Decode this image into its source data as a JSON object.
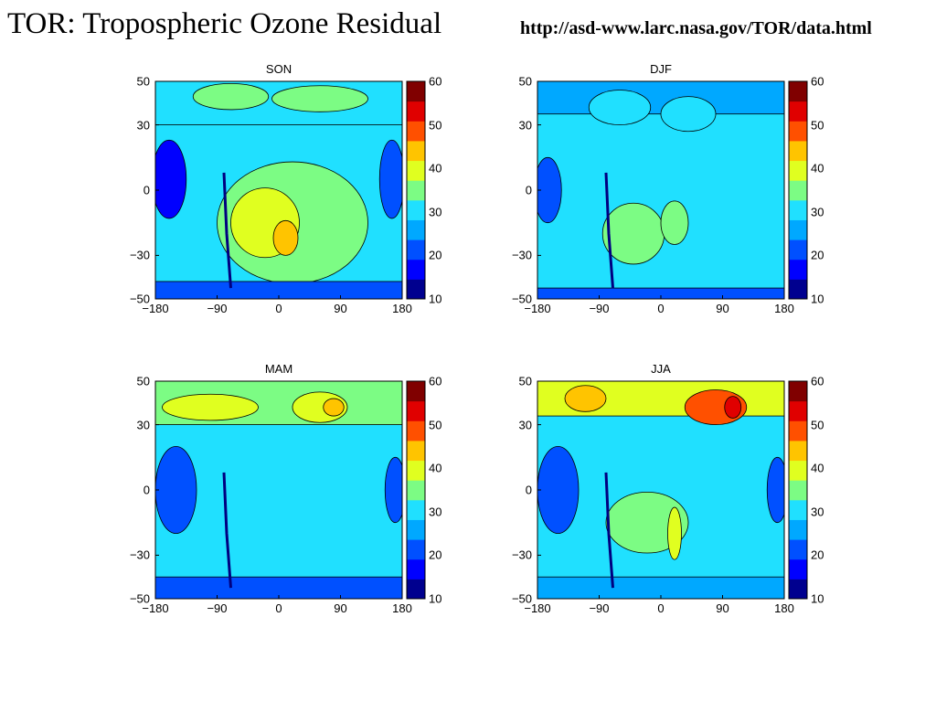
{
  "page": {
    "title": "TOR: Tropospheric Ozone Residual",
    "url_text": "http://asd-www.larc.nasa.gov/TOR/data.html"
  },
  "colormap": [
    "#00008f",
    "#0000ff",
    "#0050ff",
    "#00a8ff",
    "#20e0ff",
    "#7cfc84",
    "#e0ff20",
    "#ffc400",
    "#ff5000",
    "#e00000",
    "#800000"
  ],
  "chart_data": [
    {
      "type": "heatmap",
      "title": "SON",
      "x_ticks": [
        "−180",
        "−90",
        "0",
        "90",
        "180"
      ],
      "y_ticks": [
        "50",
        "30",
        "0",
        "−30",
        "−50"
      ],
      "x_tick_values": [
        -180,
        -90,
        0,
        90,
        180
      ],
      "y_tick_values": [
        50,
        30,
        0,
        -30,
        -50
      ],
      "xlim": [
        -180,
        180
      ],
      "ylim": [
        -50,
        50
      ],
      "colorbar": {
        "ticks": [
          "60",
          "50",
          "40",
          "30",
          "20",
          "10"
        ],
        "tick_values": [
          60,
          50,
          40,
          30,
          20,
          10
        ],
        "range": [
          10,
          60
        ]
      },
      "features": [
        {
          "shape": "band",
          "y": [
            30,
            50
          ],
          "value": 31
        },
        {
          "shape": "blob",
          "x": -70,
          "y": 43,
          "rx": 55,
          "ry": 6,
          "value": 35
        },
        {
          "shape": "blob",
          "x": 60,
          "y": 42,
          "rx": 70,
          "ry": 6,
          "value": 35
        },
        {
          "shape": "blob",
          "x": -160,
          "y": 5,
          "rx": 25,
          "ry": 18,
          "value": 16
        },
        {
          "shape": "blob",
          "x": 165,
          "y": 5,
          "rx": 18,
          "ry": 18,
          "value": 20
        },
        {
          "shape": "blob",
          "x": 20,
          "y": -15,
          "rx": 110,
          "ry": 28,
          "value": 36
        },
        {
          "shape": "blob",
          "x": -20,
          "y": -15,
          "rx": 50,
          "ry": 16,
          "value": 41
        },
        {
          "shape": "blob",
          "x": 10,
          "y": -22,
          "rx": 18,
          "ry": 8,
          "value": 46
        },
        {
          "shape": "band",
          "y": [
            -50,
            -42
          ],
          "value": 22
        }
      ]
    },
    {
      "type": "heatmap",
      "title": "DJF",
      "x_ticks": [
        "−180",
        "−90",
        "0",
        "90",
        "180"
      ],
      "y_ticks": [
        "50",
        "30",
        "0",
        "−30",
        "−50"
      ],
      "x_tick_values": [
        -180,
        -90,
        0,
        90,
        180
      ],
      "y_tick_values": [
        50,
        30,
        0,
        -30,
        -50
      ],
      "xlim": [
        -180,
        180
      ],
      "ylim": [
        -50,
        50
      ],
      "colorbar": {
        "ticks": [
          "60",
          "50",
          "40",
          "30",
          "20",
          "10"
        ],
        "tick_values": [
          60,
          50,
          40,
          30,
          20,
          10
        ],
        "range": [
          10,
          60
        ]
      },
      "features": [
        {
          "shape": "band",
          "y": [
            35,
            50
          ],
          "value": 24
        },
        {
          "shape": "blob",
          "x": -60,
          "y": 38,
          "rx": 45,
          "ry": 8,
          "value": 30
        },
        {
          "shape": "blob",
          "x": 40,
          "y": 35,
          "rx": 40,
          "ry": 8,
          "value": 30
        },
        {
          "shape": "blob",
          "x": -165,
          "y": 0,
          "rx": 20,
          "ry": 15,
          "value": 20
        },
        {
          "shape": "blob",
          "x": -40,
          "y": -20,
          "rx": 45,
          "ry": 14,
          "value": 36
        },
        {
          "shape": "blob",
          "x": 20,
          "y": -15,
          "rx": 20,
          "ry": 10,
          "value": 36
        },
        {
          "shape": "band",
          "y": [
            -50,
            -45
          ],
          "value": 22
        }
      ]
    },
    {
      "type": "heatmap",
      "title": "MAM",
      "x_ticks": [
        "−180",
        "−90",
        "0",
        "90",
        "180"
      ],
      "y_ticks": [
        "50",
        "30",
        "0",
        "−30",
        "−50"
      ],
      "x_tick_values": [
        -180,
        -90,
        0,
        90,
        180
      ],
      "y_tick_values": [
        50,
        30,
        0,
        -30,
        -50
      ],
      "xlim": [
        -180,
        180
      ],
      "ylim": [
        -50,
        50
      ],
      "colorbar": {
        "ticks": [
          "60",
          "50",
          "40",
          "30",
          "20",
          "10"
        ],
        "tick_values": [
          60,
          50,
          40,
          30,
          20,
          10
        ],
        "range": [
          10,
          60
        ]
      },
      "features": [
        {
          "shape": "band",
          "y": [
            30,
            50
          ],
          "value": 34
        },
        {
          "shape": "blob",
          "x": -100,
          "y": 38,
          "rx": 70,
          "ry": 6,
          "value": 41
        },
        {
          "shape": "blob",
          "x": 60,
          "y": 38,
          "rx": 40,
          "ry": 7,
          "value": 41
        },
        {
          "shape": "blob",
          "x": 80,
          "y": 38,
          "rx": 15,
          "ry": 4,
          "value": 46
        },
        {
          "shape": "blob",
          "x": -150,
          "y": 0,
          "rx": 30,
          "ry": 20,
          "value": 18
        },
        {
          "shape": "blob",
          "x": 170,
          "y": 0,
          "rx": 15,
          "ry": 15,
          "value": 20
        },
        {
          "shape": "band",
          "y": [
            -50,
            -40
          ],
          "value": 22
        }
      ]
    },
    {
      "type": "heatmap",
      "title": "JJA",
      "x_ticks": [
        "−180",
        "−90",
        "0",
        "90",
        "180"
      ],
      "y_ticks": [
        "50",
        "30",
        "0",
        "−30",
        "−50"
      ],
      "x_tick_values": [
        -180,
        -90,
        0,
        90,
        180
      ],
      "y_tick_values": [
        50,
        30,
        0,
        -30,
        -50
      ],
      "xlim": [
        -180,
        180
      ],
      "ylim": [
        -50,
        50
      ],
      "colorbar": {
        "ticks": [
          "60",
          "50",
          "40",
          "30",
          "20",
          "10"
        ],
        "tick_values": [
          60,
          50,
          40,
          30,
          20,
          10
        ],
        "range": [
          10,
          60
        ]
      },
      "features": [
        {
          "shape": "band",
          "y": [
            34,
            50
          ],
          "value": 42
        },
        {
          "shape": "blob",
          "x": -110,
          "y": 42,
          "rx": 30,
          "ry": 6,
          "value": 47
        },
        {
          "shape": "blob",
          "x": 80,
          "y": 38,
          "rx": 45,
          "ry": 8,
          "value": 48
        },
        {
          "shape": "blob",
          "x": 105,
          "y": 38,
          "rx": 12,
          "ry": 5,
          "value": 54
        },
        {
          "shape": "blob",
          "x": -150,
          "y": 0,
          "rx": 30,
          "ry": 20,
          "value": 18
        },
        {
          "shape": "blob",
          "x": 170,
          "y": 0,
          "rx": 15,
          "ry": 15,
          "value": 18
        },
        {
          "shape": "blob",
          "x": -20,
          "y": -15,
          "rx": 60,
          "ry": 14,
          "value": 36
        },
        {
          "shape": "blob",
          "x": 20,
          "y": -20,
          "rx": 10,
          "ry": 12,
          "value": 40
        },
        {
          "shape": "band",
          "y": [
            -50,
            -40
          ],
          "value": 24
        }
      ]
    }
  ]
}
